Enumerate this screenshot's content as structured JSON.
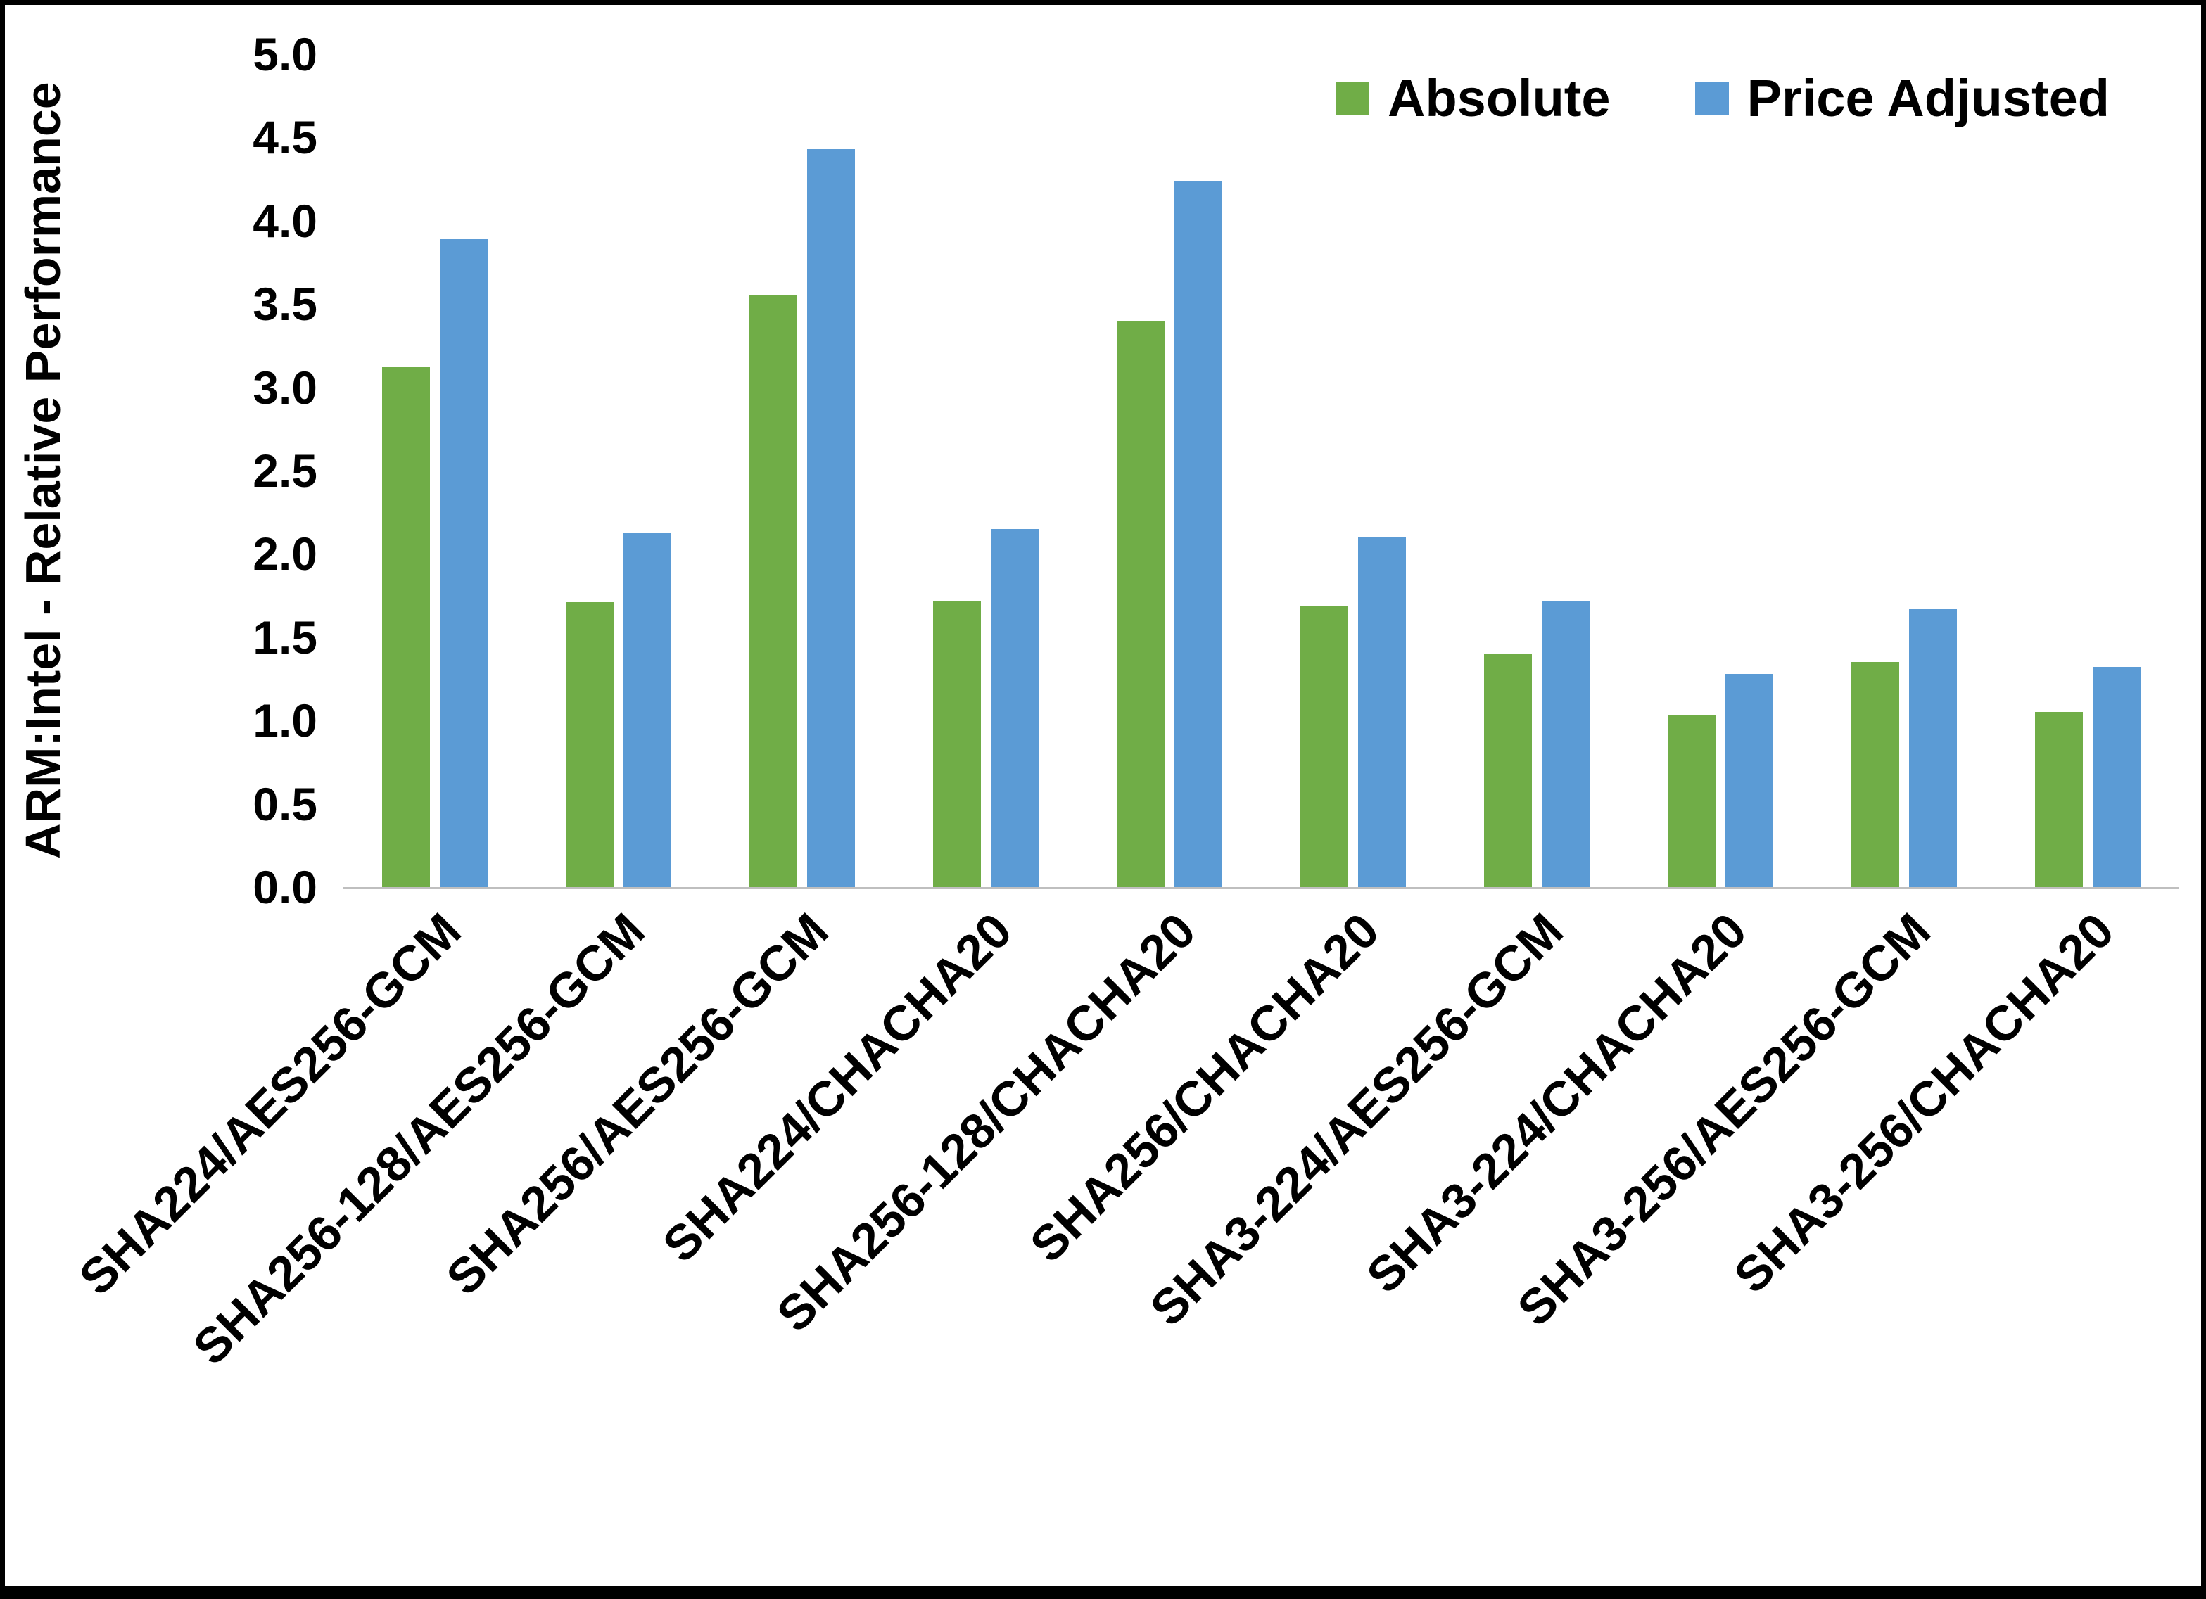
{
  "chart_data": {
    "type": "bar",
    "title": "",
    "xlabel": "",
    "ylabel": "ARM:Intel - Relative Performance",
    "ylim": [
      0,
      5
    ],
    "ytick_step": 0.5,
    "yticks": [
      "5.0",
      "4.5",
      "4.0",
      "3.5",
      "3.0",
      "2.5",
      "2.0",
      "1.5",
      "1.0",
      "0.5",
      "0.0"
    ],
    "grid": false,
    "legend_position": "top-right",
    "axis_line_color": "#bfbfbf",
    "categories": [
      "SHA224/AES256-GCM",
      "SHA256-128/AES256-GCM",
      "SHA256/AES256-GCM",
      "SHA224/CHACHA20",
      "SHA256-128/CHACHA20",
      "SHA256/CHACHA20",
      "SHA3-224/AES256-GCM",
      "SHA3-224/CHACHA20",
      "SHA3-256/AES256-GCM",
      "SHA3-256/CHACHA20"
    ],
    "series": [
      {
        "name": "Absolute",
        "color": "#70AD47",
        "values": [
          3.12,
          1.71,
          3.55,
          1.72,
          3.4,
          1.69,
          1.4,
          1.03,
          1.35,
          1.05
        ]
      },
      {
        "name": "Price Adjusted",
        "color": "#5B9BD5",
        "values": [
          3.89,
          2.13,
          4.43,
          2.15,
          4.24,
          2.1,
          1.72,
          1.28,
          1.67,
          1.32
        ]
      }
    ]
  },
  "legend": {
    "items": [
      {
        "label": "Absolute",
        "color": "#70AD47"
      },
      {
        "label": "Price Adjusted",
        "color": "#5B9BD5"
      }
    ]
  },
  "colors": {
    "background": "#FFFFFF",
    "frame_border": "#000000",
    "text": "#000000",
    "axis_line": "#BFBFBF",
    "series_absolute": "#70AD47",
    "series_price_adjusted": "#5B9BD5"
  }
}
